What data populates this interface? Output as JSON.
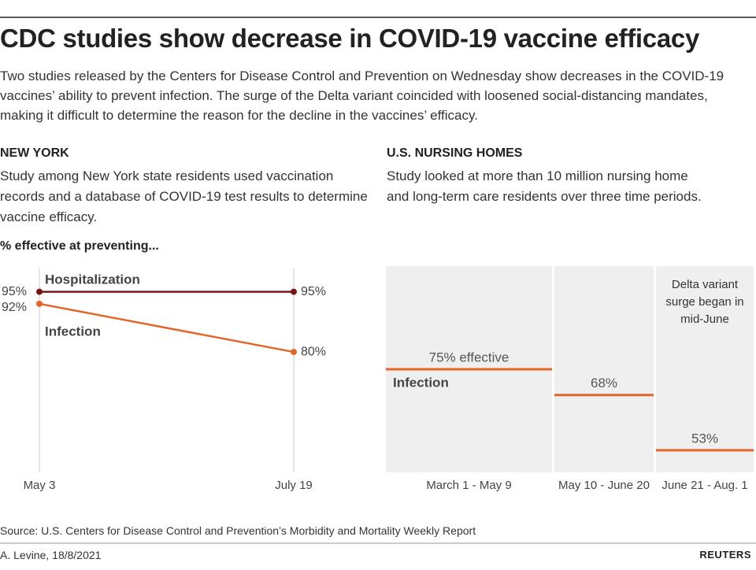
{
  "header": {
    "title": "CDC studies show decrease in COVID-19 vaccine efficacy",
    "subtitle": "Two studies released by the Centers for Disease Control and Prevention on Wednesday show decreases in the COVID-19 vaccines’ ability to prevent infection. The surge of the Delta variant coincided with loosened social-distancing mandates, making it difficult to determine the reason for the decline in the vaccines’ efficacy."
  },
  "chart_data": [
    {
      "type": "line",
      "title": "NEW YORK",
      "subtitle": "Study among New York state residents used vaccination records and a database of COVID-19 test results to determine vaccine efficacy.",
      "ylabel": "% effective at preventing...",
      "categories": [
        "May 3",
        "July 19"
      ],
      "series": [
        {
          "name": "Hospitalization",
          "color": "#7b1416",
          "values": [
            95,
            95
          ],
          "value_labels": [
            "95%",
            "95%"
          ]
        },
        {
          "name": "Infection",
          "color": "#e3672a",
          "values": [
            92,
            80
          ],
          "value_labels": [
            "92%",
            "80%"
          ]
        }
      ],
      "ylim": [
        50,
        101
      ]
    },
    {
      "type": "step",
      "title": "U.S. NURSING HOMES",
      "subtitle": "Study looked at more than 10 million nursing home and long-term care residents over three time periods.",
      "categories": [
        "March 1 - May 9",
        "May 10 - June 20",
        "June 21 - Aug. 1"
      ],
      "series": [
        {
          "name": "Infection",
          "color": "#e3672a",
          "values": [
            75,
            68,
            53
          ],
          "value_labels": [
            "75% effective",
            "68%",
            "53%"
          ]
        }
      ],
      "annotation": "Delta variant surge began in mid-June",
      "ylim": [
        47,
        103
      ]
    }
  ],
  "footer": {
    "source": "Source: U.S. Centers for Disease Control and Prevention’s Morbidity and Mortality Weekly Report",
    "credit": "A. Levine, 18/8/2021",
    "logo": "REUTERS"
  }
}
